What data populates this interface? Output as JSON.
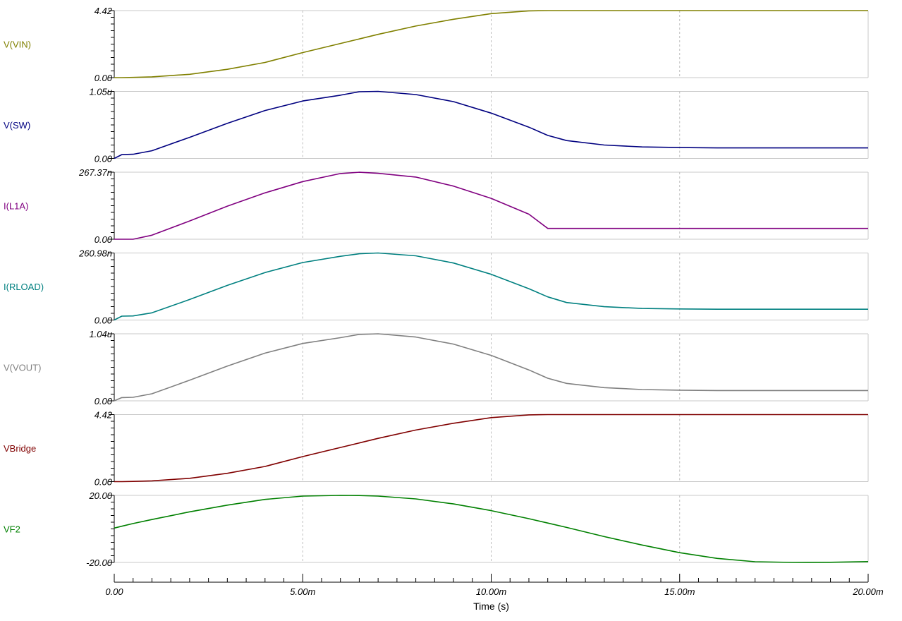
{
  "chart_data": {
    "type": "line",
    "x_axis": {
      "label": "Time (s)",
      "range": [
        0,
        0.02
      ],
      "ticks": [
        {
          "value": 0,
          "label": "0.00"
        },
        {
          "value": 0.005,
          "label": "5.00m"
        },
        {
          "value": 0.01,
          "label": "10.00m"
        },
        {
          "value": 0.015,
          "label": "15.00m"
        },
        {
          "value": 0.02,
          "label": "20.00m"
        }
      ]
    },
    "grid": true,
    "x": [
      0,
      0.0002,
      0.0005,
      0.001,
      0.002,
      0.003,
      0.004,
      0.005,
      0.006,
      0.0065,
      0.007,
      0.008,
      0.009,
      0.01,
      0.011,
      0.0115,
      0.012,
      0.013,
      0.014,
      0.015,
      0.016,
      0.017,
      0.018,
      0.019,
      0.02
    ],
    "series": [
      {
        "name": "V(VIN)",
        "color": "#808000",
        "ylim": [
          0,
          4.42
        ],
        "ytick_labels": {
          "max": "4.42",
          "min": "0.00"
        },
        "values": [
          0,
          0.001,
          0.012,
          0.05,
          0.22,
          0.55,
          1.0,
          1.65,
          2.25,
          2.55,
          2.85,
          3.4,
          3.85,
          4.22,
          4.4,
          4.42,
          4.42,
          4.42,
          4.42,
          4.42,
          4.42,
          4.42,
          4.42,
          4.42,
          4.42
        ]
      },
      {
        "name": "V(SW)",
        "color": "#000080",
        "ylim": [
          0,
          1.05e-06
        ],
        "ytick_labels": {
          "max": "1.05u",
          "min": "0.00"
        },
        "values": [
          0,
          6e-08,
          6.5e-08,
          1.2e-07,
          3.3e-07,
          5.5e-07,
          7.5e-07,
          9e-07,
          9.9e-07,
          1.045e-06,
          1.05e-06,
          1e-06,
          8.9e-07,
          7.1e-07,
          4.9e-07,
          3.6e-07,
          2.8e-07,
          2.1e-07,
          1.8e-07,
          1.7e-07,
          1.65e-07,
          1.65e-07,
          1.65e-07,
          1.65e-07,
          1.65e-07
        ]
      },
      {
        "name": "I(L1A)",
        "color": "#800080",
        "ylim": [
          0,
          2.6737e-07
        ],
        "ytick_labels": {
          "max": "267.37n",
          "min": "0.00"
        },
        "values": [
          0,
          0,
          0,
          1.6e-08,
          7.3e-08,
          1.32e-07,
          1.85e-07,
          2.3e-07,
          2.62e-07,
          2.67e-07,
          2.63e-07,
          2.48e-07,
          2.12e-07,
          1.63e-07,
          1e-07,
          4.3e-08,
          4.3e-08,
          4.3e-08,
          4.3e-08,
          4.3e-08,
          4.3e-08,
          4.3e-08,
          4.3e-08,
          4.3e-08,
          4.3e-08
        ]
      },
      {
        "name": "I(RLOAD)",
        "color": "#008080",
        "ylim": [
          0,
          2.6098e-07
        ],
        "ytick_labels": {
          "max": "260.98n",
          "min": "0.00"
        },
        "values": [
          0,
          1.5e-08,
          1.6e-08,
          2.8e-08,
          8e-08,
          1.35e-07,
          1.85e-07,
          2.24e-07,
          2.48e-07,
          2.58e-07,
          2.61e-07,
          2.5e-07,
          2.22e-07,
          1.78e-07,
          1.22e-07,
          9e-08,
          6.8e-08,
          5.2e-08,
          4.5e-08,
          4.3e-08,
          4.2e-08,
          4.2e-08,
          4.2e-08,
          4.2e-08,
          4.2e-08
        ]
      },
      {
        "name": "V(VOUT)",
        "color": "#808080",
        "ylim": [
          0,
          1.04e-06
        ],
        "ytick_labels": {
          "max": "1.04u",
          "min": "0.00"
        },
        "values": [
          0,
          5e-08,
          5.5e-08,
          1.1e-07,
          3.2e-07,
          5.4e-07,
          7.4e-07,
          8.9e-07,
          9.8e-07,
          1.03e-06,
          1.04e-06,
          9.9e-07,
          8.8e-07,
          7.05e-07,
          4.8e-07,
          3.5e-07,
          2.7e-07,
          2.05e-07,
          1.75e-07,
          1.65e-07,
          1.6e-07,
          1.6e-07,
          1.6e-07,
          1.6e-07,
          1.6e-07
        ]
      },
      {
        "name": "VBridge",
        "color": "#800000",
        "ylim": [
          0,
          4.42
        ],
        "ytick_labels": {
          "max": "4.42",
          "min": "0.00"
        },
        "values": [
          0,
          0.001,
          0.012,
          0.05,
          0.22,
          0.55,
          1.0,
          1.65,
          2.25,
          2.55,
          2.85,
          3.4,
          3.85,
          4.22,
          4.4,
          4.42,
          4.42,
          4.42,
          4.42,
          4.42,
          4.42,
          4.42,
          4.42,
          4.42,
          4.42
        ]
      },
      {
        "name": "VF2",
        "color": "#008000",
        "ylim": [
          -20,
          20
        ],
        "ytick_labels": {
          "max": "20.00",
          "min": "-20.00"
        },
        "values": [
          0.5,
          1.6,
          3.2,
          5.6,
          10.2,
          14.2,
          17.6,
          19.6,
          20.0,
          19.9,
          19.6,
          17.9,
          14.9,
          10.9,
          6.1,
          3.5,
          0.9,
          -4.6,
          -9.6,
          -14.2,
          -17.6,
          -19.6,
          -20.0,
          -19.9,
          -19.5
        ]
      }
    ]
  }
}
